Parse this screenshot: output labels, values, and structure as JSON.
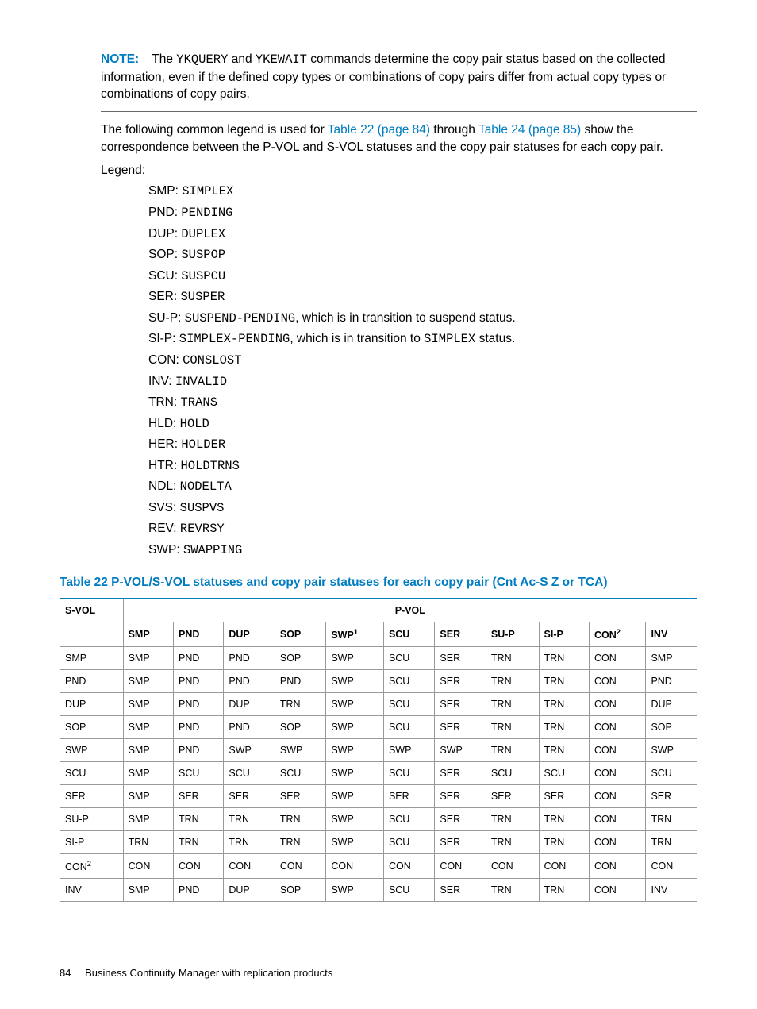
{
  "note": {
    "label": "NOTE:",
    "text_before": "The ",
    "cmd1": "YKQUERY",
    "mid1": " and ",
    "cmd2": "YKEWAIT",
    "text_after": " commands determine the copy pair status based on the collected information, even if the defined copy types or combinations of copy pairs differ from actual copy types or combinations of copy pairs."
  },
  "intro": {
    "pre": "The following common legend is used for ",
    "link1": "Table 22 (page 84)",
    "mid": " through ",
    "link2": "Table 24 (page 85)",
    "post": " show the correspondence between the P-VOL and S-VOL statuses and the copy pair statuses for each copy pair."
  },
  "legend_label": "Legend:",
  "legend": [
    {
      "abbr": "SMP",
      "sep": ": ",
      "val": "SIMPLEX",
      "tail": ""
    },
    {
      "abbr": "PND",
      "sep": ": ",
      "val": "PENDING",
      "tail": ""
    },
    {
      "abbr": "DUP",
      "sep": ": ",
      "val": "DUPLEX",
      "tail": ""
    },
    {
      "abbr": "SOP",
      "sep": ": ",
      "val": "SUSPOP",
      "tail": ""
    },
    {
      "abbr": "SCU",
      "sep": ": ",
      "val": "SUSPCU",
      "tail": ""
    },
    {
      "abbr": "SER",
      "sep": ": ",
      "val": "SUSPER",
      "tail": ""
    },
    {
      "abbr": "SU-P",
      "sep": ": ",
      "val": "SUSPEND-PENDING",
      "tail": ", which is in transition to suspend status."
    },
    {
      "abbr": "SI-P",
      "sep": ": ",
      "val": "SIMPLEX-PENDING",
      "tail": ", which is in transition to ",
      "tail_mono": "SIMPLEX",
      "tail2": " status."
    },
    {
      "abbr": "CON",
      "sep": ": ",
      "val": "CONSLOST",
      "tail": ""
    },
    {
      "abbr": "INV",
      "sep": ": ",
      "val": "INVALID",
      "tail": ""
    },
    {
      "abbr": "TRN",
      "sep": ": ",
      "val": "TRANS",
      "tail": ""
    },
    {
      "abbr": "HLD",
      "sep": ": ",
      "val": "HOLD",
      "tail": ""
    },
    {
      "abbr": "HER",
      "sep": ": ",
      "val": "HOLDER",
      "tail": ""
    },
    {
      "abbr": "HTR",
      "sep": ": ",
      "val": "HOLDTRNS",
      "tail": ""
    },
    {
      "abbr": "NDL",
      "sep": ": ",
      "val": "NODELTA",
      "tail": ""
    },
    {
      "abbr": "SVS",
      "sep": ": ",
      "val": "SUSPVS",
      "tail": ""
    },
    {
      "abbr": "REV",
      "sep": ": ",
      "val": "REVRSY",
      "tail": ""
    },
    {
      "abbr": "SWP",
      "sep": ": ",
      "val": "SWAPPING",
      "tail": ""
    }
  ],
  "table": {
    "title": "Table 22 P-VOL/S-VOL statuses and copy pair statuses for each copy pair (Cnt Ac-S Z or TCA)",
    "corner": "S-VOL",
    "group": "P-VOL",
    "cols": [
      "SMP",
      "PND",
      "DUP",
      "SOP",
      "SWP",
      "SCU",
      "SER",
      "SU-P",
      "SI-P",
      "CON",
      "INV"
    ],
    "col_sup": {
      "4": "1",
      "9": "2"
    },
    "rowheads": [
      "SMP",
      "PND",
      "DUP",
      "SOP",
      "SWP",
      "SCU",
      "SER",
      "SU-P",
      "SI-P",
      "CON",
      "INV"
    ],
    "row_sup": {
      "9": "2"
    },
    "rows": [
      [
        "SMP",
        "PND",
        "PND",
        "SOP",
        "SWP",
        "SCU",
        "SER",
        "TRN",
        "TRN",
        "CON",
        "SMP"
      ],
      [
        "SMP",
        "PND",
        "PND",
        "PND",
        "SWP",
        "SCU",
        "SER",
        "TRN",
        "TRN",
        "CON",
        "PND"
      ],
      [
        "SMP",
        "PND",
        "DUP",
        "TRN",
        "SWP",
        "SCU",
        "SER",
        "TRN",
        "TRN",
        "CON",
        "DUP"
      ],
      [
        "SMP",
        "PND",
        "PND",
        "SOP",
        "SWP",
        "SCU",
        "SER",
        "TRN",
        "TRN",
        "CON",
        "SOP"
      ],
      [
        "SMP",
        "PND",
        "SWP",
        "SWP",
        "SWP",
        "SWP",
        "SWP",
        "TRN",
        "TRN",
        "CON",
        "SWP"
      ],
      [
        "SMP",
        "SCU",
        "SCU",
        "SCU",
        "SWP",
        "SCU",
        "SER",
        "SCU",
        "SCU",
        "CON",
        "SCU"
      ],
      [
        "SMP",
        "SER",
        "SER",
        "SER",
        "SWP",
        "SER",
        "SER",
        "SER",
        "SER",
        "CON",
        "SER"
      ],
      [
        "SMP",
        "TRN",
        "TRN",
        "TRN",
        "SWP",
        "SCU",
        "SER",
        "TRN",
        "TRN",
        "CON",
        "TRN"
      ],
      [
        "TRN",
        "TRN",
        "TRN",
        "TRN",
        "SWP",
        "SCU",
        "SER",
        "TRN",
        "TRN",
        "CON",
        "TRN"
      ],
      [
        "CON",
        "CON",
        "CON",
        "CON",
        "CON",
        "CON",
        "CON",
        "CON",
        "CON",
        "CON",
        "CON"
      ],
      [
        "SMP",
        "PND",
        "DUP",
        "SOP",
        "SWP",
        "SCU",
        "SER",
        "TRN",
        "TRN",
        "CON",
        "INV"
      ]
    ]
  },
  "footer": {
    "page": "84",
    "title": "Business Continuity Manager with replication products"
  }
}
